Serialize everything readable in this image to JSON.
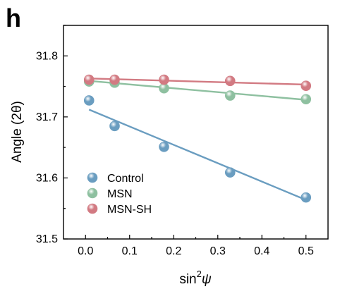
{
  "panel_label": "h",
  "chart_data": {
    "type": "scatter",
    "xlabel": "sin²ψ",
    "xlabel_parts": {
      "base": "sin",
      "sup": "2",
      "var": "ψ"
    },
    "ylabel": "Angle (2θ)",
    "xlim": [
      -0.05,
      0.55
    ],
    "ylim": [
      31.5,
      31.85
    ],
    "x_ticks": [
      0.0,
      0.1,
      0.2,
      0.3,
      0.4,
      0.5
    ],
    "x_tick_labels": [
      "0.0",
      "0.1",
      "0.2",
      "0.3",
      "0.4",
      "0.5"
    ],
    "y_ticks": [
      31.5,
      31.6,
      31.7,
      31.8
    ],
    "y_tick_labels": [
      "31.5",
      "31.6",
      "31.7",
      "31.8"
    ],
    "legend_position": "bottom-left",
    "series": [
      {
        "name": "Control",
        "color": "#6a9dc0",
        "marker": "sphere",
        "x": [
          0.008,
          0.066,
          0.178,
          0.328,
          0.5
        ],
        "y": [
          31.727,
          31.685,
          31.651,
          31.609,
          31.568
        ],
        "fit": {
          "x": [
            0.008,
            0.5
          ],
          "y": [
            31.712,
            31.564
          ]
        }
      },
      {
        "name": "MSN",
        "color": "#8ec0a0",
        "marker": "sphere",
        "x": [
          0.008,
          0.066,
          0.178,
          0.328,
          0.5
        ],
        "y": [
          31.758,
          31.756,
          31.747,
          31.735,
          31.729
        ],
        "fit": {
          "x": [
            0.008,
            0.5
          ],
          "y": [
            31.759,
            31.728
          ]
        }
      },
      {
        "name": "MSN-SH",
        "color": "#d27a82",
        "marker": "sphere",
        "x": [
          0.008,
          0.066,
          0.178,
          0.328,
          0.5
        ],
        "y": [
          31.761,
          31.761,
          31.761,
          31.759,
          31.751
        ],
        "fit": {
          "x": [
            0.008,
            0.5
          ],
          "y": [
            31.763,
            31.753
          ]
        }
      }
    ]
  }
}
